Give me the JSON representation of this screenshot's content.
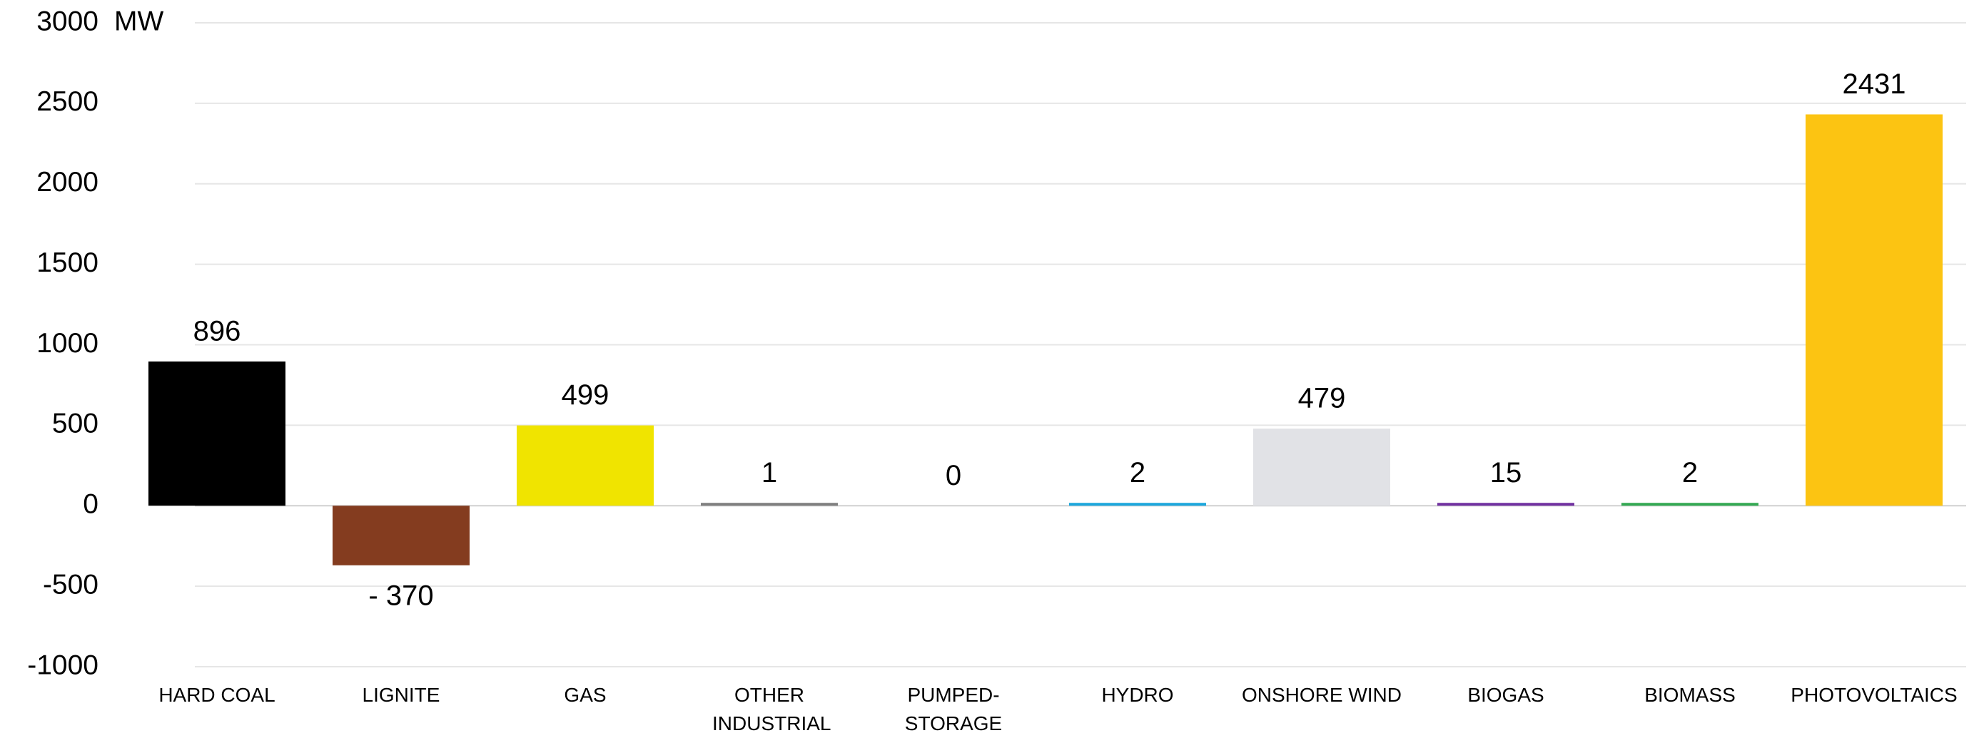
{
  "chart_data": {
    "type": "bar",
    "y_unit": "MW",
    "categories": [
      "HARD COAL",
      "LIGNITE",
      "GAS",
      "OTHER INDUSTRIAL",
      "PUMPED-STORAGE",
      "HYDRO",
      "ONSHORE WIND",
      "BIOGAS",
      "BIOMASS",
      "PHOTOVOLTAICS"
    ],
    "values": [
      896,
      -370,
      499,
      1,
      0,
      2,
      479,
      15,
      2,
      2431
    ],
    "value_labels": [
      "896",
      "- 370",
      "499",
      "1",
      "0",
      "2",
      "479",
      "15",
      "2",
      "2431"
    ],
    "colors": [
      "#000000",
      "#843c1f",
      "#f0e400",
      "#7f7f7f",
      "#1f3864",
      "#1ba6dc",
      "#e1e2e6",
      "#7030a0",
      "#33a852",
      "#fcc412"
    ],
    "ylim": [
      -1000,
      3000
    ],
    "yticks": [
      -1000,
      -500,
      0,
      500,
      1000,
      1500,
      2000,
      2500,
      3000
    ],
    "grid": true
  }
}
